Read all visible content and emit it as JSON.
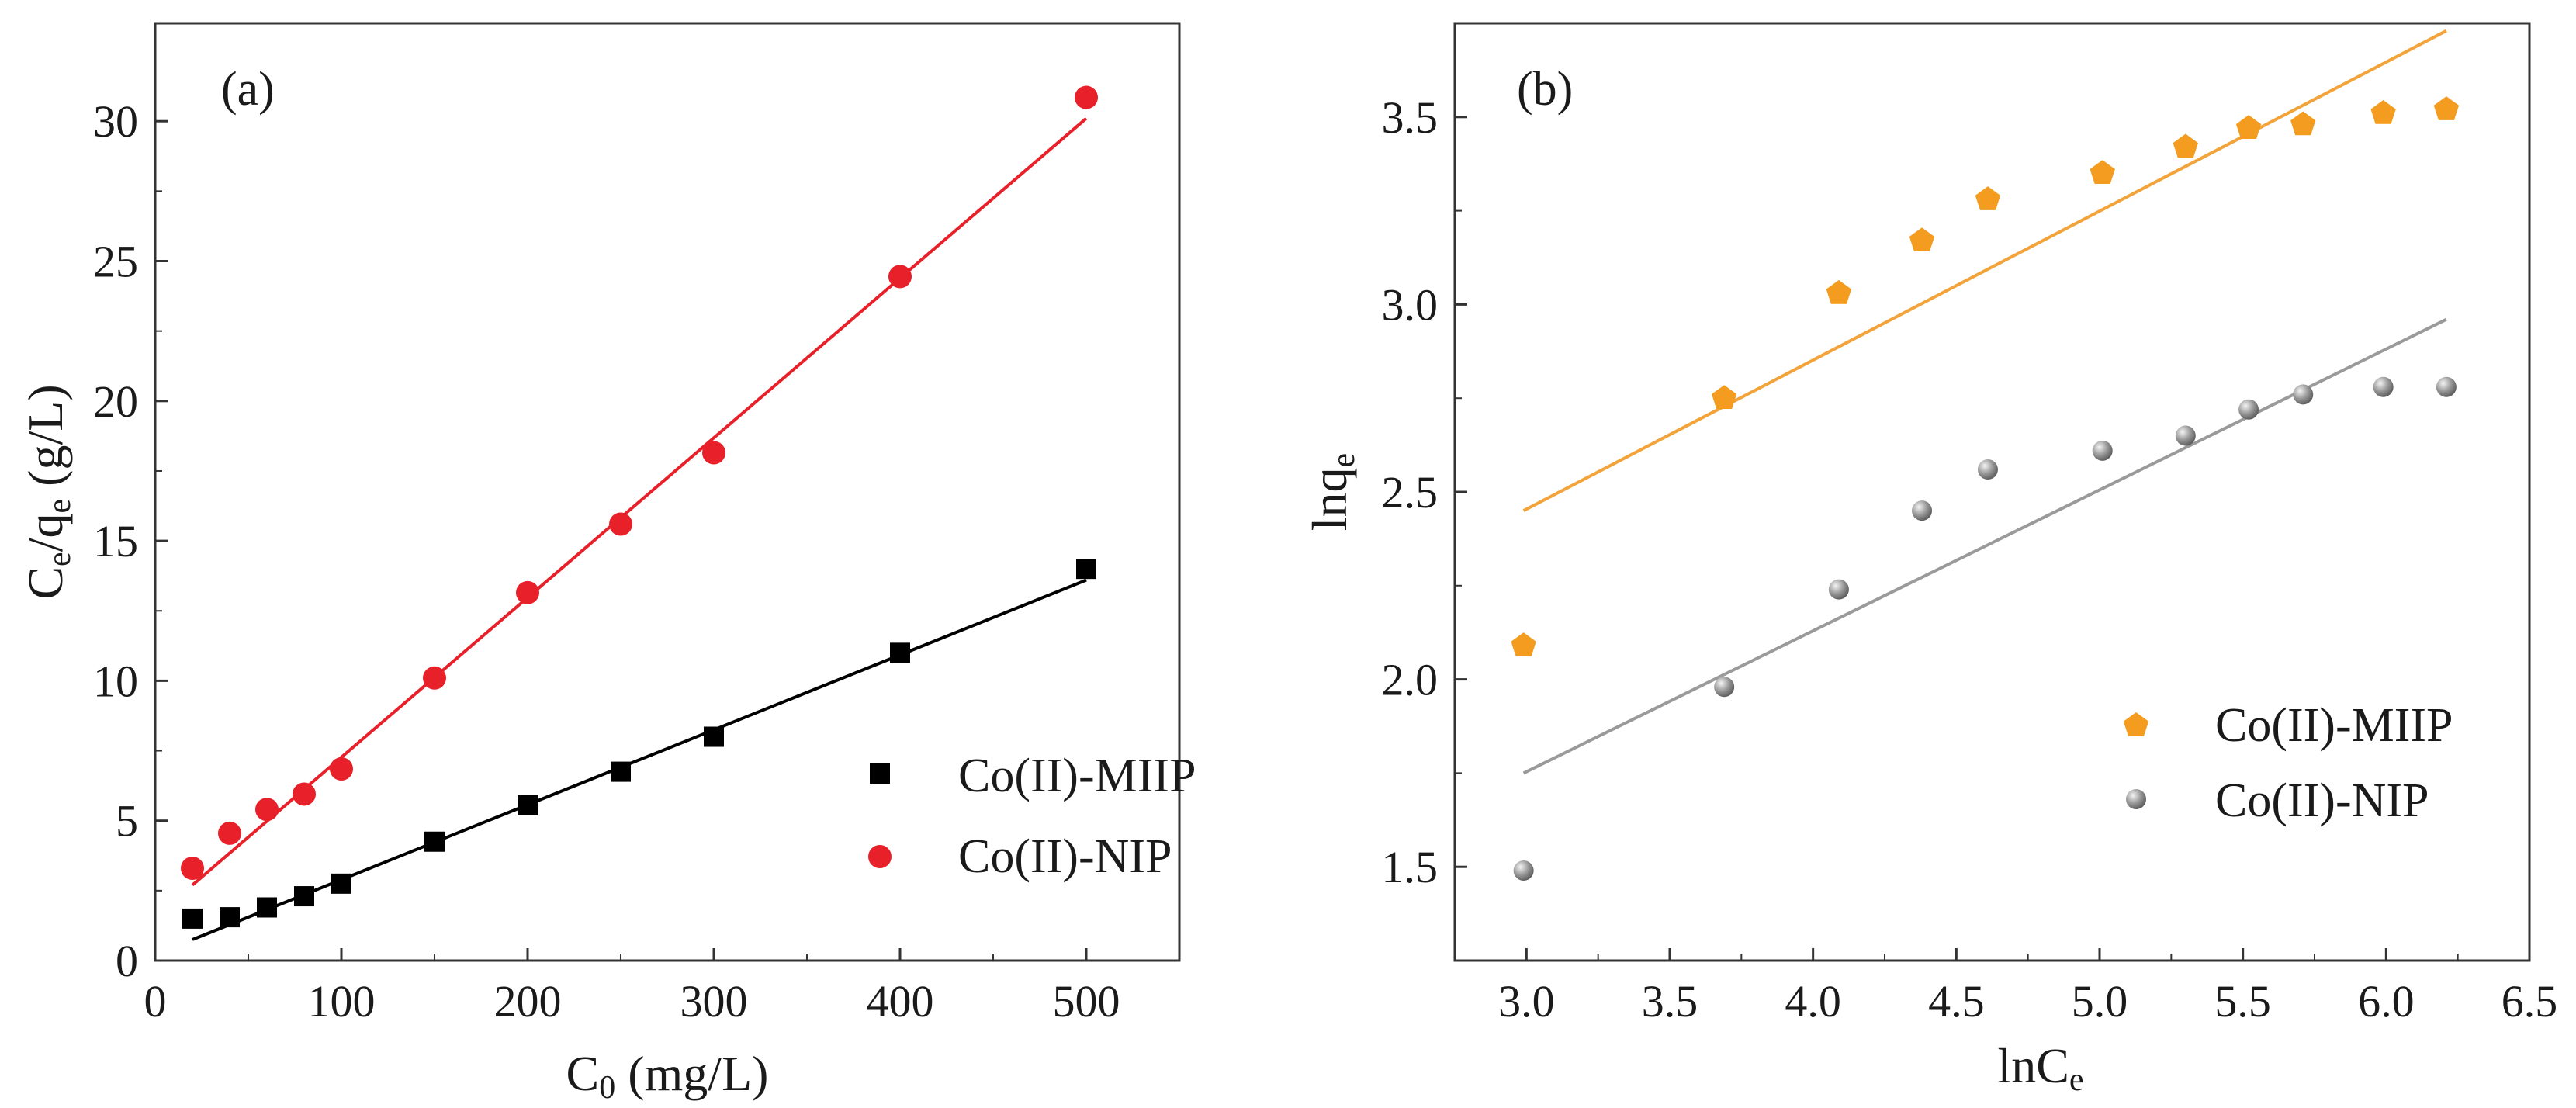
{
  "chart_data": [
    {
      "type": "scatter",
      "panel_label": "(a)",
      "xlabel_main": "C",
      "xlabel_sub": "0",
      "xlabel_tail": " (mg/L)",
      "ylabel_p1": "C",
      "ylabel_s1": "e",
      "ylabel_p2": "/q",
      "ylabel_s2": "e",
      "ylabel_p3": " (g/L)",
      "xlim": [
        0,
        550
      ],
      "ylim": [
        0,
        33.5
      ],
      "x_ticks": [
        0,
        100,
        200,
        300,
        400,
        500
      ],
      "x_tick_labels": [
        "0",
        "100",
        "200",
        "300",
        "400",
        "500"
      ],
      "y_ticks": [
        0,
        5,
        10,
        15,
        20,
        25,
        30
      ],
      "y_tick_labels": [
        "0",
        "5",
        "10",
        "15",
        "20",
        "25",
        "30"
      ],
      "legend_position": "lower-right",
      "series": [
        {
          "name": "Co(II)-MIIP",
          "marker": "square",
          "color": "#000000",
          "x": [
            20,
            40,
            60,
            80,
            100,
            150,
            200,
            250,
            300,
            400,
            500
          ],
          "y": [
            1.5,
            1.55,
            1.9,
            2.3,
            2.75,
            4.25,
            5.55,
            6.75,
            8.0,
            11.0,
            14.0
          ],
          "fit": {
            "x0": 20,
            "y0": 0.75,
            "x1": 500,
            "y1": 13.6
          }
        },
        {
          "name": "Co(II)-NIP",
          "marker": "circle",
          "color": "#e8202a",
          "x": [
            20,
            40,
            60,
            80,
            100,
            150,
            200,
            250,
            300,
            400,
            500
          ],
          "y": [
            3.3,
            4.55,
            5.4,
            5.95,
            6.85,
            10.1,
            13.15,
            15.6,
            18.15,
            24.45,
            30.85
          ],
          "fit": {
            "x0": 20,
            "y0": 2.7,
            "x1": 500,
            "y1": 30.1
          }
        }
      ]
    },
    {
      "type": "scatter",
      "panel_label": "(b)",
      "xlabel_main": "lnC",
      "xlabel_sub": "e",
      "ylabel_main": "lnq",
      "ylabel_sub": "e",
      "xlim": [
        2.75,
        6.5
      ],
      "ylim": [
        1.25,
        3.75
      ],
      "x_ticks": [
        3.0,
        3.5,
        4.0,
        4.5,
        5.0,
        5.5,
        6.0,
        6.5
      ],
      "x_tick_labels": [
        "3.0",
        "3.5",
        "4.0",
        "4.5",
        "5.0",
        "5.5",
        "6.0",
        "6.5"
      ],
      "y_ticks": [
        1.5,
        2.0,
        2.5,
        3.0,
        3.5
      ],
      "y_tick_labels": [
        "1.5",
        "2.0",
        "2.5",
        "3.0",
        "3.5"
      ],
      "legend_position": "lower-right",
      "series": [
        {
          "name": "Co(II)-MIIP",
          "marker": "pentagon",
          "color": "#f39c1f",
          "line_color": "#f2a33a",
          "x": [
            2.99,
            3.69,
            4.09,
            4.38,
            4.61,
            5.01,
            5.3,
            5.52,
            5.71,
            5.99,
            6.21
          ],
          "y": [
            2.09,
            2.75,
            3.03,
            3.17,
            3.28,
            3.35,
            3.42,
            3.47,
            3.48,
            3.51,
            3.52
          ],
          "fit": {
            "x0": 2.99,
            "y0": 2.45,
            "x1": 6.21,
            "y1": 3.73
          }
        },
        {
          "name": "Co(II)-NIP",
          "marker": "sphere",
          "color": "#8a8a8a",
          "line_color": "#9a9a9a",
          "x": [
            2.99,
            3.69,
            4.09,
            4.38,
            4.61,
            5.01,
            5.3,
            5.52,
            5.71,
            5.99,
            6.21
          ],
          "y": [
            1.49,
            1.98,
            2.24,
            2.45,
            2.56,
            2.61,
            2.65,
            2.72,
            2.76,
            2.78,
            2.78
          ],
          "fit": {
            "x0": 2.99,
            "y0": 1.75,
            "x1": 6.21,
            "y1": 2.96
          }
        }
      ]
    }
  ]
}
